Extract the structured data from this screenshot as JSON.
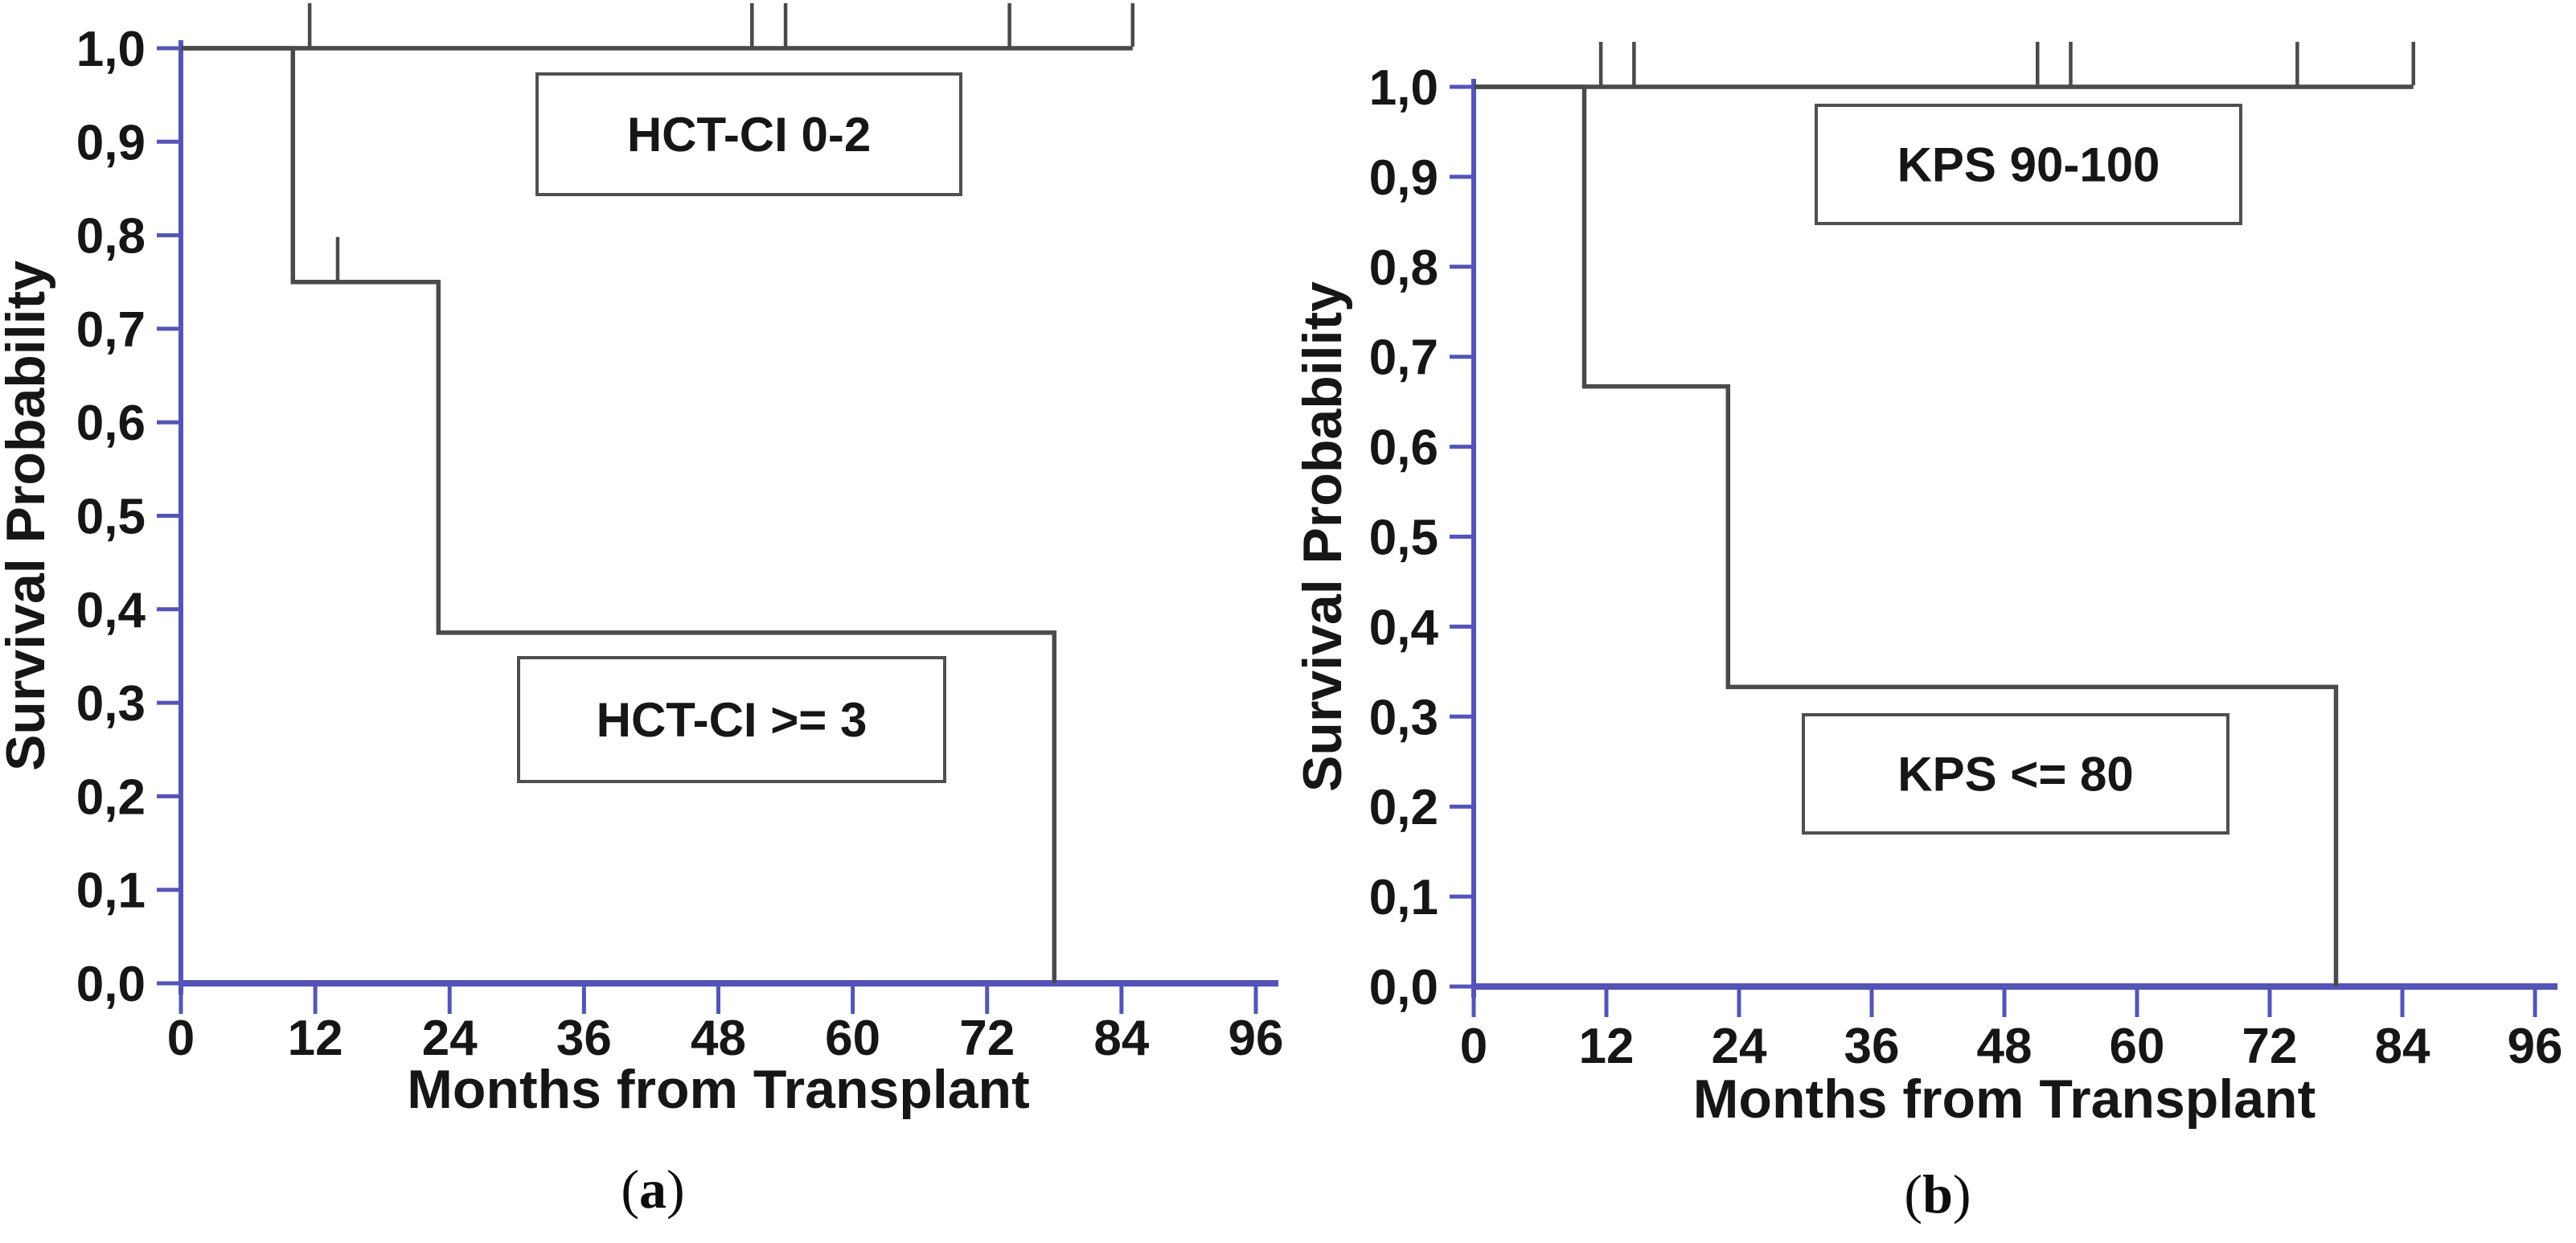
{
  "figure": {
    "colors": {
      "background": "#ffffff",
      "axis": "#5454b8",
      "curve": "#4a4a4a",
      "box_border": "#4f4f4f",
      "text": "#161616"
    },
    "captions": {
      "open": "(",
      "close": ")",
      "a": "a",
      "b": "b"
    }
  },
  "chart_data": [
    {
      "type": "line",
      "subtype": "kaplan-meier-step",
      "panel": "a",
      "title": "",
      "xlabel": "Months from Transplant",
      "ylabel": "Survival Probability",
      "xlim": [
        0,
        96
      ],
      "ylim": [
        0.0,
        1.0
      ],
      "grid": false,
      "legend_position": "boxed-annotations-inside-plot",
      "x_ticks": [
        0,
        12,
        24,
        36,
        48,
        60,
        72,
        84,
        96
      ],
      "y_ticks": [
        [
          "1,0",
          1.0
        ],
        [
          "0,9",
          0.9
        ],
        [
          "0,8",
          0.8
        ],
        [
          "0,7",
          0.7
        ],
        [
          "0,6",
          0.6
        ],
        [
          "0,5",
          0.5
        ],
        [
          "0,4",
          0.4
        ],
        [
          "0,3",
          0.3
        ],
        [
          "0,2",
          0.2
        ],
        [
          "0,1",
          0.1
        ],
        [
          "0,0",
          0.0
        ]
      ],
      "series": [
        {
          "name": "HCT-CI 0-2",
          "box_label": "HCT-CI 0-2",
          "points": [
            [
              0,
              1.0
            ],
            [
              85,
              1.0
            ]
          ],
          "censor_marks": [
            [
              11.5,
              1.0
            ],
            [
              51,
              1.0
            ],
            [
              54,
              1.0
            ],
            [
              74,
              1.0
            ],
            [
              85,
              1.0
            ]
          ]
        },
        {
          "name": "HCT-CI >= 3",
          "box_label": "HCT-CI >= 3",
          "points": [
            [
              0,
              1.0
            ],
            [
              10,
              1.0
            ],
            [
              10,
              0.75
            ],
            [
              23,
              0.75
            ],
            [
              23,
              0.375
            ],
            [
              78,
              0.375
            ],
            [
              78,
              0.0
            ]
          ],
          "censor_marks": [
            [
              14,
              0.75
            ]
          ]
        }
      ]
    },
    {
      "type": "line",
      "subtype": "kaplan-meier-step",
      "panel": "b",
      "title": "",
      "xlabel": "Months from Transplant",
      "ylabel": "Survival Probability",
      "xlim": [
        0,
        96
      ],
      "ylim": [
        0.0,
        1.0
      ],
      "grid": false,
      "legend_position": "boxed-annotations-inside-plot",
      "x_ticks": [
        0,
        12,
        24,
        36,
        48,
        60,
        72,
        84,
        96
      ],
      "y_ticks": [
        [
          "1,0",
          1.0
        ],
        [
          "0,9",
          0.9
        ],
        [
          "0,8",
          0.8
        ],
        [
          "0,7",
          0.7
        ],
        [
          "0,6",
          0.6
        ],
        [
          "0,5",
          0.5
        ],
        [
          "0,4",
          0.4
        ],
        [
          "0,3",
          0.3
        ],
        [
          "0,2",
          0.2
        ],
        [
          "0,1",
          0.1
        ],
        [
          "0,0",
          0.0
        ]
      ],
      "series": [
        {
          "name": "KPS 90-100",
          "box_label": "KPS 90-100",
          "points": [
            [
              0,
              1.0
            ],
            [
              85,
              1.0
            ]
          ],
          "censor_marks": [
            [
              11.5,
              1.0
            ],
            [
              14.5,
              1.0
            ],
            [
              51,
              1.0
            ],
            [
              54,
              1.0
            ],
            [
              74.5,
              1.0
            ],
            [
              85,
              1.0
            ]
          ]
        },
        {
          "name": "KPS <= 80",
          "box_label": "KPS <= 80",
          "points": [
            [
              0,
              1.0
            ],
            [
              10,
              1.0
            ],
            [
              10,
              0.667
            ],
            [
              23,
              0.667
            ],
            [
              23,
              0.333
            ],
            [
              78,
              0.333
            ],
            [
              78,
              0.0
            ]
          ],
          "censor_marks": []
        }
      ]
    }
  ]
}
